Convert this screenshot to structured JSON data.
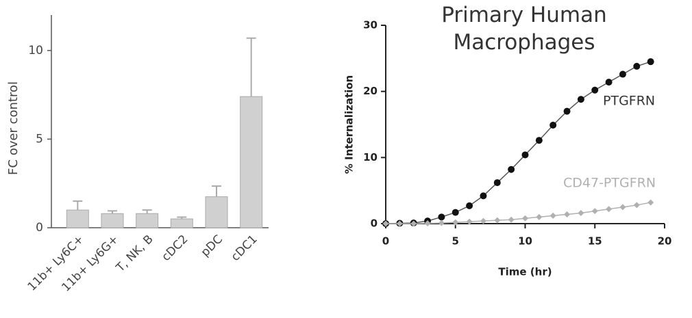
{
  "chart_data": [
    {
      "type": "bar",
      "y_label": "FC over control",
      "categories": [
        "11b+ Ly6C+",
        "11b+ Ly6G+",
        "T, NK, B",
        "cDC2",
        "pDC",
        "cDC1"
      ],
      "values": [
        1.0,
        0.8,
        0.8,
        0.5,
        1.75,
        7.4
      ],
      "errors": [
        0.5,
        0.15,
        0.2,
        0.1,
        0.6,
        3.3
      ],
      "color": "#d0d0d0",
      "ylim": [
        0,
        12
      ],
      "yticks": [
        0,
        5,
        10
      ]
    },
    {
      "type": "line",
      "title": "Primary Human Macrophages",
      "x_label": "Time (hr)",
      "y_label": "% Internalization",
      "x": [
        0,
        1,
        2,
        3,
        4,
        5,
        6,
        7,
        8,
        9,
        10,
        11,
        12,
        13,
        14,
        15,
        16,
        17,
        18,
        19
      ],
      "series": [
        {
          "name": "PTGFRN",
          "color": "#111111",
          "values": [
            0,
            0.05,
            0.1,
            0.4,
            1.0,
            1.7,
            2.7,
            4.2,
            6.2,
            8.2,
            10.4,
            12.6,
            14.9,
            17.0,
            18.8,
            20.2,
            21.4,
            22.6,
            23.8,
            24.5
          ]
        },
        {
          "name": "CD47-PTGFRN",
          "color": "#b0b0b0",
          "values": [
            0,
            0,
            0,
            0.05,
            0.1,
            0.2,
            0.3,
            0.4,
            0.5,
            0.6,
            0.8,
            1.0,
            1.2,
            1.4,
            1.6,
            1.9,
            2.2,
            2.5,
            2.8,
            3.2
          ]
        }
      ],
      "xlim": [
        0,
        20
      ],
      "xticks": [
        0,
        5,
        10,
        15,
        20
      ],
      "ylim": [
        0,
        30
      ],
      "yticks": [
        0,
        10,
        20,
        30
      ]
    }
  ]
}
